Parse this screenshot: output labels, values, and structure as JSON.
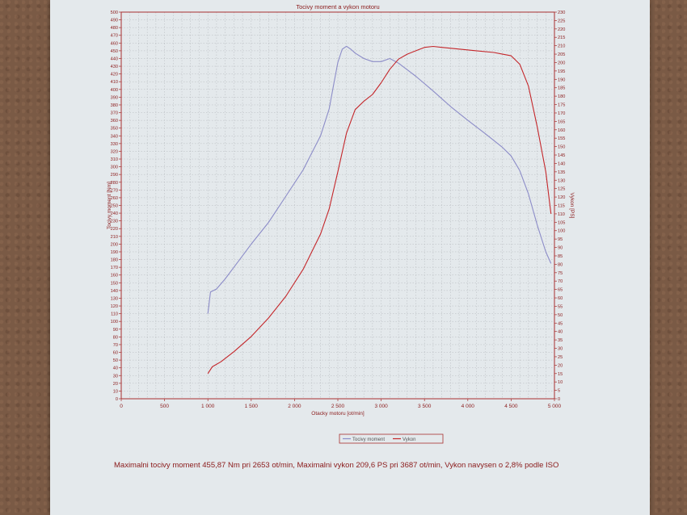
{
  "chart_data": {
    "type": "line",
    "title": "Tocivy moment a vykon motoru",
    "xlabel": "Otacky motoru [ot/min]",
    "ylabel": "Tocivy moment [Nm]",
    "y2label": "Vykon [PS]",
    "xlim": [
      0,
      5000
    ],
    "ylim": [
      0,
      500
    ],
    "y2lim": [
      0,
      230
    ],
    "xticks": [
      0,
      500,
      1000,
      1500,
      2000,
      2500,
      3000,
      3500,
      4000,
      4500,
      5000
    ],
    "xtick_labels": [
      "0",
      "500",
      "1 000",
      "1 500",
      "2 000",
      "2 500",
      "3 000",
      "3 500",
      "4 000",
      "4 500",
      "5 000"
    ],
    "grid": true,
    "legend_position": "bottom-center",
    "series": [
      {
        "name": "Tocivy moment",
        "axis": "left",
        "color": "#8c8cc8",
        "x": [
          1000,
          1030,
          1100,
          1200,
          1300,
          1400,
          1500,
          1700,
          1900,
          2100,
          2300,
          2400,
          2450,
          2500,
          2550,
          2600,
          2650,
          2700,
          2800,
          2900,
          3000,
          3100,
          3200,
          3400,
          3600,
          3800,
          4000,
          4200,
          4400,
          4500,
          4600,
          4700,
          4800,
          4900,
          4960
        ],
        "y": [
          110,
          138,
          142,
          155,
          170,
          185,
          200,
          228,
          262,
          296,
          340,
          375,
          405,
          435,
          452,
          455.87,
          452,
          447,
          440,
          436,
          436,
          440,
          434,
          417,
          398,
          378,
          360,
          343,
          325,
          314,
          295,
          265,
          225,
          190,
          175
        ]
      },
      {
        "name": "Vykon",
        "axis": "right",
        "color": "#c4262a",
        "x": [
          1000,
          1050,
          1150,
          1300,
          1500,
          1700,
          1900,
          2100,
          2300,
          2400,
          2500,
          2600,
          2700,
          2800,
          2900,
          3000,
          3100,
          3200,
          3300,
          3400,
          3500,
          3600,
          3700,
          3900,
          4100,
          4300,
          4400,
          4500,
          4600,
          4700,
          4800,
          4900,
          4960
        ],
        "y": [
          15,
          19,
          22,
          28,
          37,
          48,
          61,
          77,
          98,
          113,
          135,
          158,
          172,
          177,
          181,
          188,
          196,
          202,
          205,
          207,
          209,
          209.6,
          209,
          208,
          207,
          206,
          205,
          204,
          199,
          186,
          162,
          135,
          110
        ]
      }
    ],
    "annotation": "Maximalni tocivy moment 455,87 Nm pri 2653 ot/min,  Maximalni vykon 209,6 PS pri 3687 ot/min,  Vykon navysen o 2,8% podle ISO"
  },
  "colors": {
    "paper": "#e4e9ec",
    "axes": "#a83030",
    "grid": "#b4b8bc",
    "text": "#8a1a1a"
  }
}
